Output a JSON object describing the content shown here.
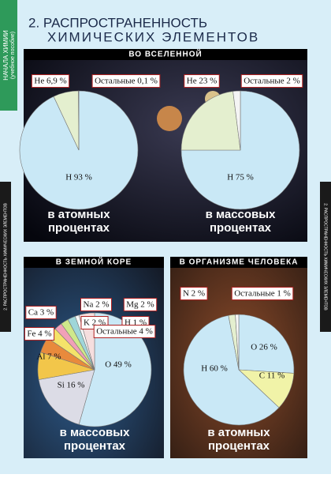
{
  "poster": {
    "series_label": "НАЧАЛА ХИМИИ",
    "series_sub": "(учебное пособие)",
    "side_text": "2. РАСПРОСТРАНЕННОСТЬ ХИМИЧЕСКИХ ЭЛЕМЕНТОВ",
    "title": [
      "2. РАСПРОСТРАНЕННОСТЬ",
      "ХИМИЧЕСКИХ ЭЛЕМЕНТОВ"
    ],
    "sections": [
      "ВО ВСЕЛЕННОЙ",
      "В ЗЕМНОЙ КОРЕ",
      "В ОРГАНИЗМЕ ЧЕЛОВЕКА"
    ]
  },
  "chart_data": [
    {
      "type": "pie",
      "values": [
        93,
        6.9,
        0.1
      ],
      "value_labels": [
        "H 93 %",
        "He 6,9 %",
        "Остальные 0,1 %"
      ],
      "colors": [
        "#c9e8f6",
        "#e4efcf",
        "#f4f4f4"
      ],
      "caption": [
        "в атомных",
        "процентах"
      ]
    },
    {
      "type": "pie",
      "values": [
        75,
        23,
        2
      ],
      "value_labels": [
        "H 75 %",
        "He 23 %",
        "Остальные 2 %"
      ],
      "colors": [
        "#c9e8f6",
        "#e4efcf",
        "#f4f4f4"
      ],
      "caption": [
        "в массовых",
        "процентах"
      ]
    },
    {
      "type": "pie",
      "values": [
        49,
        16,
        7,
        4,
        3,
        2,
        2,
        2,
        1,
        4
      ],
      "value_labels": [
        "O 49 %",
        "Si 16 %",
        "Al 7 %",
        "Fe 4 %",
        "Ca 3 %",
        "Na 2 %",
        "K 2 %",
        "Mg 2 %",
        "H 1 %",
        "Остальные 4 %"
      ],
      "colors": [
        "#c9e8f6",
        "#dcdce6",
        "#f2c64a",
        "#e88a3c",
        "#f4e36a",
        "#f1a0b8",
        "#cfe88a",
        "#9fd6d9",
        "#f7f7f7",
        "#f6dede"
      ],
      "caption": [
        "в массовых",
        "процентах"
      ]
    },
    {
      "type": "pie",
      "values": [
        26,
        11,
        60,
        2,
        1
      ],
      "value_labels": [
        "O 26 %",
        "C 11 %",
        "H 60 %",
        "N 2 %",
        "Остальные 1 %"
      ],
      "colors": [
        "#c9e8f6",
        "#f1f3a8",
        "#c9e8f6",
        "#e4efcf",
        "#f7f7f7"
      ],
      "caption": [
        "в атомных",
        "процентах"
      ]
    }
  ]
}
